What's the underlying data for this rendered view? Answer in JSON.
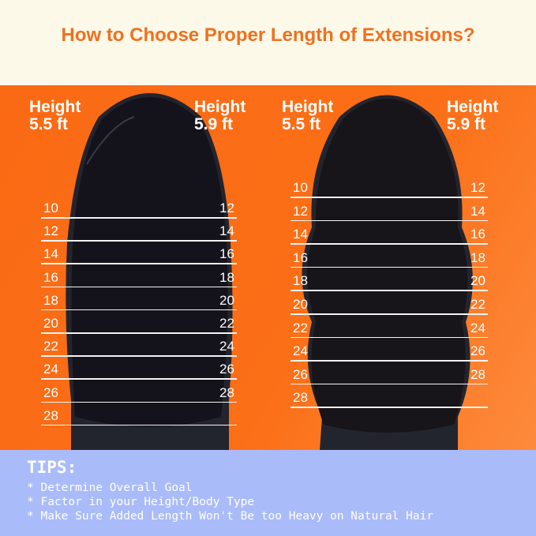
{
  "title": "How to Choose Proper Length of Extensions?",
  "colors": {
    "title": "#f0701f",
    "background_top": "#fdf9e9",
    "background_main": "#fa6a14",
    "tips_background": "#aabbfa",
    "hair": "#14121a"
  },
  "panels": [
    {
      "hair_style": "straight",
      "left_label": [
        "Height",
        "5.5 ft"
      ],
      "right_label": [
        "Height",
        "5.9 ft"
      ],
      "left_lengths": [
        "10",
        "12",
        "14",
        "16",
        "18",
        "20",
        "22",
        "24",
        "26",
        "28"
      ],
      "right_lengths": [
        "12",
        "14",
        "16",
        "18",
        "20",
        "22",
        "24",
        "26",
        "28"
      ]
    },
    {
      "hair_style": "wavy",
      "left_label": [
        "Height",
        "5.5 ft"
      ],
      "right_label": [
        "Height",
        "5.9 ft"
      ],
      "left_lengths": [
        "10",
        "12",
        "14",
        "16",
        "18",
        "20",
        "22",
        "24",
        "26",
        "28"
      ],
      "right_lengths": [
        "12",
        "14",
        "16",
        "18",
        "20",
        "22",
        "24",
        "26",
        "28"
      ]
    }
  ],
  "tips": {
    "title": "TIPS:",
    "items": [
      "* Determine Overall Goal",
      "* Factor in your Height/Body Type",
      "* Make Sure Added Length Won't Be too Heavy on Natural Hair"
    ]
  }
}
